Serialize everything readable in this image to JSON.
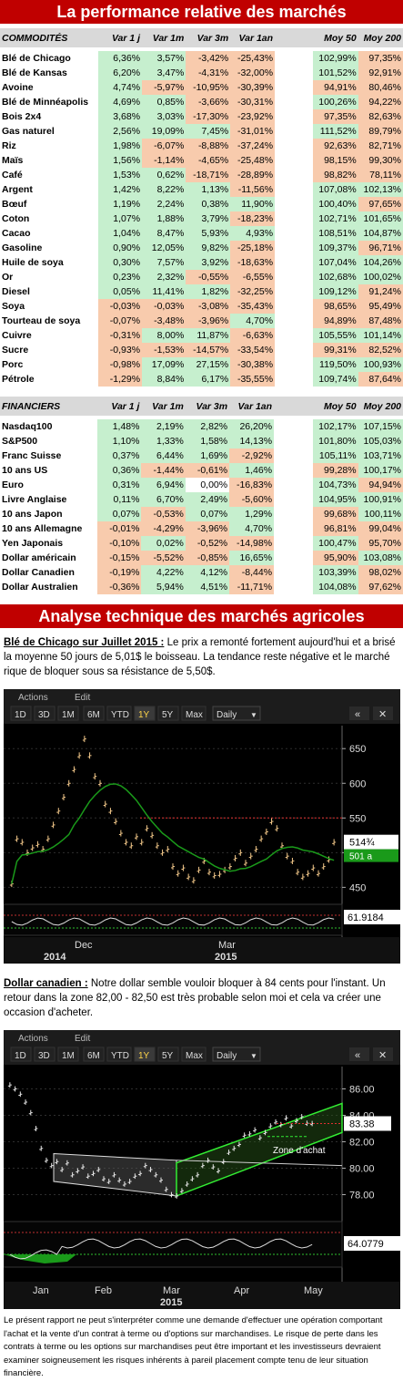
{
  "banner1": "La performance relative des marchés",
  "banner2": "Analyse technique des marchés agricoles",
  "headers": {
    "c1": "Var 1 j",
    "c2": "Var 1m",
    "c3": "Var 3m",
    "c4": "Var 1an",
    "c5": "Moy 50",
    "c6": "Moy 200"
  },
  "commodities": {
    "title": "COMMODITÉS",
    "rows": [
      [
        "Blé de Chicago",
        "6,36%",
        "3,57%",
        "-3,42%",
        "-25,43%",
        "102,99%",
        "97,35%"
      ],
      [
        "Blé de Kansas",
        "6,20%",
        "3,47%",
        "-4,31%",
        "-32,00%",
        "101,52%",
        "92,91%"
      ],
      [
        "Avoine",
        "4,74%",
        "-5,97%",
        "-10,95%",
        "-30,39%",
        "94,91%",
        "80,46%"
      ],
      [
        "Blé de Minnéapolis",
        "4,69%",
        "0,85%",
        "-3,66%",
        "-30,31%",
        "100,26%",
        "94,22%"
      ],
      [
        "Bois 2x4",
        "3,68%",
        "3,03%",
        "-17,30%",
        "-23,92%",
        "97,35%",
        "82,63%"
      ],
      [
        "Gas naturel",
        "2,56%",
        "19,09%",
        "7,45%",
        "-31,01%",
        "111,52%",
        "89,79%"
      ],
      [
        "Riz",
        "1,98%",
        "-6,07%",
        "-8,88%",
        "-37,24%",
        "92,63%",
        "82,71%"
      ],
      [
        "Maïs",
        "1,56%",
        "-1,14%",
        "-4,65%",
        "-25,48%",
        "98,15%",
        "99,30%"
      ],
      [
        "Café",
        "1,53%",
        "0,62%",
        "-18,71%",
        "-28,89%",
        "98,82%",
        "78,11%"
      ],
      [
        "Argent",
        "1,42%",
        "8,22%",
        "1,13%",
        "-11,56%",
        "107,08%",
        "102,13%"
      ],
      [
        "Bœuf",
        "1,19%",
        "2,24%",
        "0,38%",
        "11,90%",
        "100,40%",
        "97,65%"
      ],
      [
        "Coton",
        "1,07%",
        "1,88%",
        "3,79%",
        "-18,23%",
        "102,71%",
        "101,65%"
      ],
      [
        "Cacao",
        "1,04%",
        "8,47%",
        "5,93%",
        "4,93%",
        "108,51%",
        "104,87%"
      ],
      [
        "Gasoline",
        "0,90%",
        "12,05%",
        "9,82%",
        "-25,18%",
        "109,37%",
        "96,71%"
      ],
      [
        "Huile de soya",
        "0,30%",
        "7,57%",
        "3,92%",
        "-18,63%",
        "107,04%",
        "104,26%"
      ],
      [
        "Or",
        "0,23%",
        "2,32%",
        "-0,55%",
        "-6,55%",
        "102,68%",
        "100,02%"
      ],
      [
        "Diesel",
        "0,05%",
        "11,41%",
        "1,82%",
        "-32,25%",
        "109,12%",
        "91,24%"
      ],
      [
        "Soya",
        "-0,03%",
        "-0,03%",
        "-3,08%",
        "-35,43%",
        "98,65%",
        "95,49%"
      ],
      [
        "Tourteau de soya",
        "-0,07%",
        "-3,48%",
        "-3,96%",
        "4,70%",
        "94,89%",
        "87,48%"
      ],
      [
        "Cuivre",
        "-0,31%",
        "8,00%",
        "11,87%",
        "-6,63%",
        "105,55%",
        "101,14%"
      ],
      [
        "Sucre",
        "-0,93%",
        "-1,53%",
        "-14,57%",
        "-33,54%",
        "99,31%",
        "82,52%"
      ],
      [
        "Porc",
        "-0,98%",
        "17,09%",
        "27,15%",
        "-30,38%",
        "119,50%",
        "100,93%"
      ],
      [
        "Pétrole",
        "-1,29%",
        "8,84%",
        "6,17%",
        "-35,55%",
        "109,74%",
        "87,64%"
      ]
    ]
  },
  "financials": {
    "title": "FINANCIERS",
    "rows": [
      [
        "Nasdaq100",
        "1,48%",
        "2,19%",
        "2,82%",
        "26,20%",
        "102,17%",
        "107,15%"
      ],
      [
        "S&P500",
        "1,10%",
        "1,33%",
        "1,58%",
        "14,13%",
        "101,80%",
        "105,03%"
      ],
      [
        "Franc Suisse",
        "0,37%",
        "6,44%",
        "1,69%",
        "-2,92%",
        "105,11%",
        "103,71%"
      ],
      [
        "10 ans US",
        "0,36%",
        "-1,44%",
        "-0,61%",
        "1,46%",
        "99,28%",
        "100,17%"
      ],
      [
        "Euro",
        "0,31%",
        "6,94%",
        "0,00%",
        "-16,83%",
        "104,73%",
        "94,94%"
      ],
      [
        "Livre Anglaise",
        "0,11%",
        "6,70%",
        "2,49%",
        "-5,60%",
        "104,95%",
        "100,91%"
      ],
      [
        "10 ans Japon",
        "0,07%",
        "-0,53%",
        "0,07%",
        "1,29%",
        "99,68%",
        "100,11%"
      ],
      [
        "10 ans Allemagne",
        "-0,01%",
        "-4,29%",
        "-3,96%",
        "4,70%",
        "96,81%",
        "99,04%"
      ],
      [
        "Yen Japonais",
        "-0,10%",
        "0,02%",
        "-0,52%",
        "-14,98%",
        "100,47%",
        "95,70%"
      ],
      [
        "Dollar américain",
        "-0,15%",
        "-5,52%",
        "-0,85%",
        "16,65%",
        "95,90%",
        "103,08%"
      ],
      [
        "Dollar Canadien",
        "-0,19%",
        "4,22%",
        "4,12%",
        "-8,44%",
        "103,39%",
        "98,02%"
      ],
      [
        "Dollar Australien",
        "-0,36%",
        "5,94%",
        "4,51%",
        "-11,71%",
        "104,08%",
        "97,62%"
      ]
    ]
  },
  "wheat": {
    "title": "Blé de Chicago sur Juillet 2015 :",
    "text": " Le prix a remonté fortement aujourd'hui et a brisé la moyenne 50 jours de 5,01$ le boisseau. La tendance reste négative et le marché rique de bloquer sous sa résistance de 5,50$."
  },
  "cad": {
    "title": "Dollar canadien :",
    "text": " Notre dollar semble vouloir bloquer à 84 cents pour l'instant. Un retour dans la zone 82,00 - 82,50 est très probable selon moi et cela va créer une occasion d'acheter."
  },
  "toolbar": {
    "actions": "Actions",
    "edit": "Edit",
    "ranges": [
      "1D",
      "3D",
      "1M",
      "6M",
      "YTD",
      "1Y",
      "5Y",
      "Max"
    ],
    "period": "Daily",
    "back": "«"
  },
  "chart1": {
    "type": "line",
    "ticks": [
      "650",
      "600",
      "550",
      "500",
      "450"
    ],
    "ylim": [
      440,
      670
    ],
    "price_label": "514¾",
    "ma_label": "501 a",
    "osc_label": "61.9184",
    "x_month": [
      "Dec",
      "Mar"
    ],
    "x_year": [
      "2014",
      "2015"
    ],
    "series": [
      455,
      520,
      515,
      500,
      507,
      512,
      505,
      520,
      540,
      560,
      580,
      600,
      620,
      640,
      664,
      640,
      610,
      600,
      570,
      560,
      545,
      528,
      515,
      510,
      523,
      515,
      535,
      525,
      510,
      500,
      505,
      480,
      470,
      478,
      465,
      460,
      475,
      488,
      472,
      467,
      469,
      475,
      480,
      492,
      500,
      485,
      495,
      505,
      520,
      530,
      545,
      535,
      510,
      495,
      488,
      472,
      465,
      470,
      478,
      470,
      480,
      490,
      515
    ]
  },
  "chart2": {
    "type": "line",
    "ticks": [
      "86.00",
      "84.00",
      "82.00",
      "80.00",
      "78.00"
    ],
    "ylim": [
      77,
      87
    ],
    "price_label": "83.38",
    "osc_label": "64.0779",
    "annotation": "Zone d'achat",
    "x_month": [
      "Jan",
      "Feb",
      "Mar",
      "Apr",
      "May"
    ],
    "x_year": [
      "2015"
    ],
    "series": [
      86.3,
      86.0,
      85.6,
      85.0,
      84.2,
      83.0,
      81.5,
      80.6,
      80.2,
      80.5,
      79.9,
      80.4,
      79.5,
      79.8,
      80.1,
      79.4,
      79.6,
      79.9,
      79.2,
      79.0,
      79.5,
      79.1,
      78.8,
      79.0,
      79.4,
      79.6,
      80.2,
      79.9,
      79.5,
      79.1,
      78.4,
      78.0,
      77.9,
      78.3,
      78.8,
      79.2,
      79.5,
      80.2,
      80.6,
      80.1,
      79.8,
      80.5,
      81.2,
      81.5,
      81.8,
      82.5,
      82.6,
      82.9,
      82.3,
      82.7,
      83.2,
      83.5,
      83.3,
      83.8,
      83.2,
      83.6,
      83.9,
      83.4,
      83.38
    ]
  },
  "disclaimer": "Le présent rapport ne peut s'interpréter comme une demande d'effectuer une opération comportant l'achat et la vente d'un contrat à terme ou d'options sur marchandises. Le risque de perte dans les contrats à terme ou les options sur marchandises peut être important et les investisseurs devraient examiner soigneusement les risques inhérents à pareil placement compte tenu de leur situation financière.",
  "colors": {
    "banner": "#c00000",
    "positive": "#c6efce",
    "negative": "#f8cbad",
    "header": "#d9d9d9",
    "candle": "#f4c98a",
    "ma": "#1a9a1a",
    "resistance": "#e03030",
    "channel": "#33ee33"
  }
}
